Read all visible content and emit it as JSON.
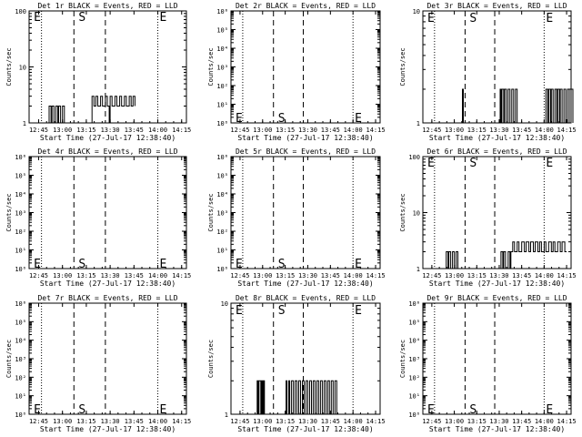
{
  "start_time_label": "Start Time (27-Jul-17 12:38:40)",
  "ylabel": "Counts/sec",
  "x_ticks": [
    "12:45",
    "13:00",
    "13:15",
    "13:30",
    "13:45",
    "14:00",
    "14:15"
  ],
  "chart_data": [
    {
      "type": "line",
      "title": "Det 1r BLACK = Events, RED = LLD",
      "scale": "log",
      "ylim": [
        1,
        100
      ],
      "y_ticks": [
        "1",
        "10",
        "100"
      ],
      "markers": {
        "E_left": "E",
        "S": "S",
        "E_right": "E"
      },
      "marker_y": 80,
      "xlabel": "Start Time (27-Jul-17 12:38:40)",
      "series": [
        {
          "values": [
            [
              12.85,
              1
            ],
            [
              12.86,
              2
            ],
            [
              12.88,
              1
            ],
            [
              12.89,
              2
            ],
            [
              12.91,
              1
            ],
            [
              12.93,
              2
            ],
            [
              12.95,
              1
            ],
            [
              12.96,
              2
            ],
            [
              12.98,
              1
            ],
            [
              13.0,
              2
            ],
            [
              13.02,
              1
            ],
            [
              13.05,
              1
            ],
            [
              13.3,
              1
            ],
            [
              13.31,
              3
            ],
            [
              13.33,
              2
            ],
            [
              13.35,
              3
            ],
            [
              13.37,
              2
            ],
            [
              13.4,
              3
            ],
            [
              13.42,
              2
            ],
            [
              13.45,
              3
            ],
            [
              13.47,
              2
            ],
            [
              13.49,
              1
            ],
            [
              13.5,
              3
            ],
            [
              13.52,
              2
            ],
            [
              13.55,
              3
            ],
            [
              13.57,
              2
            ],
            [
              13.6,
              3
            ],
            [
              13.62,
              2
            ],
            [
              13.65,
              3
            ],
            [
              13.67,
              2
            ],
            [
              13.7,
              3
            ],
            [
              13.72,
              2
            ],
            [
              13.74,
              3
            ],
            [
              13.76,
              2
            ]
          ]
        }
      ]
    },
    {
      "type": "line",
      "title": "Det 2r BLACK = Events, RED = LLD",
      "scale": "log",
      "ylim": [
        1,
        1000000
      ],
      "y_ticks": [
        "10⁰",
        "10¹",
        "10²",
        "10³",
        "10⁴",
        "10⁵",
        "10⁶"
      ],
      "markers": {
        "E_left": "E",
        "S": "S",
        "E_right": "E"
      },
      "marker_y": 2,
      "xlabel": "Start Time (27-Jul-17 12:38:40)",
      "series": []
    },
    {
      "type": "line",
      "title": "Det 3r BLACK = Events, RED = LLD",
      "scale": "log",
      "ylim": [
        1,
        10
      ],
      "y_ticks": [
        "1",
        "10"
      ],
      "markers": {
        "E_left": "E",
        "S": "S",
        "E_right": "E"
      },
      "marker_y": 8.8,
      "xlabel": "Start Time (27-Jul-17 12:38:40)",
      "series": [
        {
          "values": [
            [
              13.08,
              1
            ],
            [
              13.09,
              2
            ],
            [
              13.1,
              1
            ],
            [
              13.5,
              1
            ],
            [
              13.51,
              2
            ],
            [
              13.52,
              1
            ],
            [
              13.53,
              2
            ],
            [
              13.55,
              1
            ],
            [
              13.56,
              2
            ],
            [
              13.58,
              1
            ],
            [
              13.6,
              2
            ],
            [
              13.62,
              1
            ],
            [
              13.64,
              2
            ],
            [
              13.66,
              1
            ],
            [
              13.68,
              2
            ],
            [
              13.7,
              1
            ],
            [
              13.72,
              1
            ],
            [
              14.0,
              1
            ],
            [
              14.02,
              2
            ],
            [
              14.04,
              1
            ],
            [
              14.05,
              2
            ],
            [
              14.07,
              1
            ],
            [
              14.08,
              2
            ],
            [
              14.1,
              1
            ],
            [
              14.12,
              2
            ],
            [
              14.14,
              1
            ],
            [
              14.15,
              2
            ],
            [
              14.17,
              1
            ],
            [
              14.18,
              2
            ],
            [
              14.2,
              1
            ],
            [
              14.22,
              2
            ],
            [
              14.24,
              1
            ],
            [
              14.26,
              2
            ],
            [
              14.28,
              1
            ],
            [
              14.3,
              2
            ],
            [
              14.32,
              1
            ]
          ]
        }
      ]
    },
    {
      "type": "line",
      "title": "Det 4r BLACK = Events, RED = LLD",
      "scale": "log",
      "ylim": [
        1,
        1000000
      ],
      "y_ticks": [
        "10⁰",
        "10¹",
        "10²",
        "10³",
        "10⁴",
        "10⁵",
        "10⁶"
      ],
      "markers": {
        "E_left": "E",
        "S": "S",
        "E_right": "E"
      },
      "marker_y": 2,
      "xlabel": "Start Time (27-Jul-17 12:38:40)",
      "series": []
    },
    {
      "type": "line",
      "title": "Det 5r BLACK = Events, RED = LLD",
      "scale": "log",
      "ylim": [
        1,
        1000000
      ],
      "y_ticks": [
        "10⁰",
        "10¹",
        "10²",
        "10³",
        "10⁴",
        "10⁵",
        "10⁶"
      ],
      "markers": {
        "E_left": "E",
        "S": "S",
        "E_right": "E"
      },
      "marker_y": 2,
      "xlabel": "Start Time (27-Jul-17 12:38:40)",
      "series": []
    },
    {
      "type": "line",
      "title": "Det 6r BLACK = Events, RED = LLD",
      "scale": "log",
      "ylim": [
        1,
        100
      ],
      "y_ticks": [
        "1",
        "10",
        "100"
      ],
      "markers": {
        "E_left": "E",
        "S": "S",
        "E_right": "E"
      },
      "marker_y": 80,
      "xlabel": "Start Time (27-Jul-17 12:38:40)",
      "series": [
        {
          "values": [
            [
              12.9,
              1
            ],
            [
              12.91,
              2
            ],
            [
              12.93,
              1
            ],
            [
              12.94,
              2
            ],
            [
              12.96,
              1
            ],
            [
              12.98,
              2
            ],
            [
              13.0,
              1
            ],
            [
              13.02,
              2
            ],
            [
              13.04,
              1
            ],
            [
              13.05,
              1
            ],
            [
              13.5,
              1
            ],
            [
              13.52,
              2
            ],
            [
              13.54,
              1
            ],
            [
              13.55,
              2
            ],
            [
              13.57,
              1
            ],
            [
              13.58,
              1
            ],
            [
              13.6,
              2
            ],
            [
              13.62,
              1
            ],
            [
              13.63,
              2
            ],
            [
              13.65,
              3
            ],
            [
              13.67,
              2
            ],
            [
              13.7,
              3
            ],
            [
              13.72,
              2
            ],
            [
              13.75,
              3
            ],
            [
              13.78,
              2
            ],
            [
              13.8,
              3
            ],
            [
              13.83,
              2
            ],
            [
              13.85,
              3
            ],
            [
              13.88,
              2
            ],
            [
              13.9,
              3
            ],
            [
              13.93,
              2
            ],
            [
              13.95,
              3
            ],
            [
              13.97,
              2
            ],
            [
              14.0,
              3
            ],
            [
              14.02,
              2
            ],
            [
              14.05,
              3
            ],
            [
              14.08,
              2
            ],
            [
              14.1,
              3
            ],
            [
              14.12,
              2
            ],
            [
              14.15,
              3
            ],
            [
              14.18,
              2
            ],
            [
              14.2,
              3
            ],
            [
              14.23,
              2
            ],
            [
              14.25,
              2
            ]
          ]
        }
      ]
    },
    {
      "type": "line",
      "title": "Det 7r BLACK = Events, RED = LLD",
      "scale": "log",
      "ylim": [
        1,
        1000000
      ],
      "y_ticks": [
        "10⁰",
        "10¹",
        "10²",
        "10³",
        "10⁴",
        "10⁵",
        "10⁶"
      ],
      "markers": {
        "E_left": "E",
        "S": "S",
        "E_right": "E"
      },
      "marker_y": 2,
      "xlabel": "Start Time (27-Jul-17 12:38:40)",
      "series": []
    },
    {
      "type": "line",
      "title": "Det 8r BLACK = Events, RED = LLD",
      "scale": "log",
      "ylim": [
        1,
        10
      ],
      "y_ticks": [
        "1",
        "10"
      ],
      "markers": {
        "E_left": "E",
        "S": "S",
        "E_right": "E"
      },
      "marker_y": 8.8,
      "xlabel": "Start Time (27-Jul-17 12:38:40)",
      "series": [
        {
          "values": [
            [
              12.93,
              1
            ],
            [
              12.94,
              2
            ],
            [
              12.95,
              1
            ],
            [
              12.96,
              2
            ],
            [
              12.98,
              1
            ],
            [
              12.99,
              2
            ],
            [
              13.0,
              1
            ],
            [
              13.01,
              2
            ],
            [
              13.02,
              1
            ],
            [
              13.25,
              1
            ],
            [
              13.26,
              2
            ],
            [
              13.27,
              1
            ],
            [
              13.29,
              2
            ],
            [
              13.3,
              1
            ],
            [
              13.32,
              2
            ],
            [
              13.34,
              1
            ],
            [
              13.36,
              2
            ],
            [
              13.38,
              1
            ],
            [
              13.4,
              2
            ],
            [
              13.42,
              1
            ],
            [
              13.44,
              2
            ],
            [
              13.46,
              1
            ],
            [
              13.48,
              2
            ],
            [
              13.5,
              1
            ],
            [
              13.52,
              2
            ],
            [
              13.54,
              1
            ],
            [
              13.56,
              2
            ],
            [
              13.58,
              1
            ],
            [
              13.6,
              2
            ],
            [
              13.62,
              1
            ],
            [
              13.64,
              2
            ],
            [
              13.66,
              1
            ],
            [
              13.68,
              2
            ],
            [
              13.7,
              1
            ],
            [
              13.72,
              2
            ],
            [
              13.74,
              1
            ],
            [
              13.76,
              2
            ],
            [
              13.78,
              1
            ],
            [
              13.8,
              2
            ],
            [
              13.82,
              1
            ]
          ]
        }
      ]
    },
    {
      "type": "line",
      "title": "Det 9r BLACK = Events, RED = LLD",
      "scale": "log",
      "ylim": [
        1,
        1000000
      ],
      "y_ticks": [
        "10⁰",
        "10¹",
        "10²",
        "10³",
        "10⁴",
        "10⁵",
        "10⁶"
      ],
      "markers": {
        "E_left": "E",
        "S": "S",
        "E_right": "E"
      },
      "marker_y": 2,
      "xlabel": "Start Time (27-Jul-17 12:38:40)",
      "series": []
    }
  ]
}
